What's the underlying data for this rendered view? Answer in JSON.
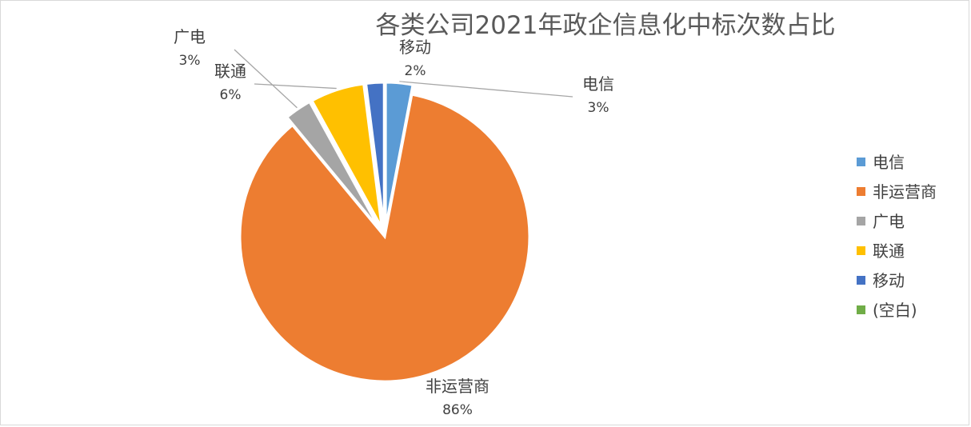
{
  "chart_data": {
    "type": "pie",
    "title": "各类公司2021年政企信息化中标次数占比",
    "slices": [
      {
        "label": "电信",
        "percent": 3,
        "display": "3%",
        "color": "#5b9bd5"
      },
      {
        "label": "非运营商",
        "percent": 86,
        "display": "86%",
        "color": "#ed7d31"
      },
      {
        "label": "广电",
        "percent": 3,
        "display": "3%",
        "color": "#a5a5a5"
      },
      {
        "label": "联通",
        "percent": 6,
        "display": "6%",
        "color": "#ffc000"
      },
      {
        "label": "移动",
        "percent": 2,
        "display": "2%",
        "color": "#4472c4"
      }
    ],
    "legend": [
      {
        "label": "电信",
        "color": "#5b9bd5"
      },
      {
        "label": "非运营商",
        "color": "#ed7d31"
      },
      {
        "label": "广电",
        "color": "#a5a5a5"
      },
      {
        "label": "联通",
        "color": "#ffc000"
      },
      {
        "label": "移动",
        "color": "#4472c4"
      },
      {
        "label": "(空白)",
        "color": "#70ad47"
      }
    ],
    "legend_position": "right"
  }
}
